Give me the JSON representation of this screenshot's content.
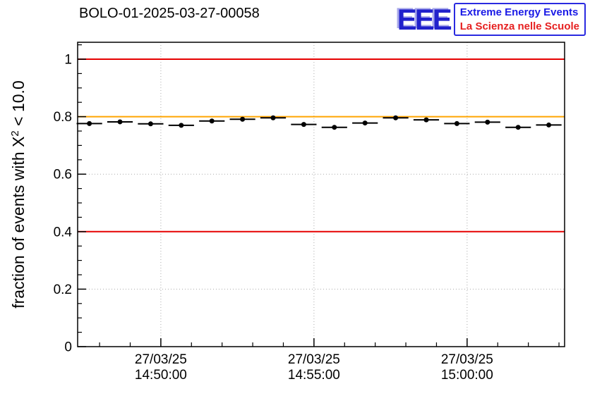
{
  "header": {
    "title": "BOLO-01-2025-03-27-00058"
  },
  "logo": {
    "acronym": "EEE",
    "line1": "Extreme Energy Events",
    "line2": "La Scienza nelle Scuole",
    "acronym_color": "#2121cc",
    "line1_color": "#1a1ae6",
    "line2_color": "#e62020"
  },
  "yaxis": {
    "label_pre": "fraction of events with X",
    "label_sup": "2",
    "label_post": " < 10.0"
  },
  "chart_data": {
    "type": "scatter",
    "title": "BOLO-01-2025-03-27-00058",
    "xlabel": "",
    "ylabel": "fraction of events with X^2 < 10.0",
    "ylim": [
      0,
      1.059
    ],
    "grid": true,
    "grid_color": "#aaaaaa",
    "marker_color": "#000000",
    "x_domain": [
      "14:47:17",
      "15:03:11"
    ],
    "y_ticks": [
      "0",
      "0.2",
      "0.4",
      "0.6",
      "0.8",
      "1"
    ],
    "x_ticks": [
      {
        "at": "14:50:00",
        "line1": "27/03/25",
        "line2": "14:50:00"
      },
      {
        "at": "14:55:00",
        "line1": "27/03/25",
        "line2": "14:55:00"
      },
      {
        "at": "15:00:00",
        "line1": "27/03/25",
        "line2": "15:00:00"
      }
    ],
    "x_minor_tick_seconds": 60,
    "reference_lines": [
      {
        "y": 1.0,
        "color": "#e60000"
      },
      {
        "y": 0.8,
        "color": "#ffa500"
      },
      {
        "y": 0.4,
        "color": "#e60000"
      }
    ],
    "points": {
      "times": [
        "14:47:40",
        "14:48:40",
        "14:49:40",
        "14:50:40",
        "14:51:40",
        "14:52:40",
        "14:53:40",
        "14:54:40",
        "14:55:40",
        "14:56:40",
        "14:57:40",
        "14:58:40",
        "14:59:40",
        "15:00:40",
        "15:01:40",
        "15:02:40"
      ],
      "values": [
        0.776,
        0.782,
        0.775,
        0.77,
        0.785,
        0.791,
        0.796,
        0.773,
        0.763,
        0.778,
        0.796,
        0.789,
        0.776,
        0.781,
        0.763,
        0.771
      ],
      "xerr_seconds": 25
    }
  }
}
